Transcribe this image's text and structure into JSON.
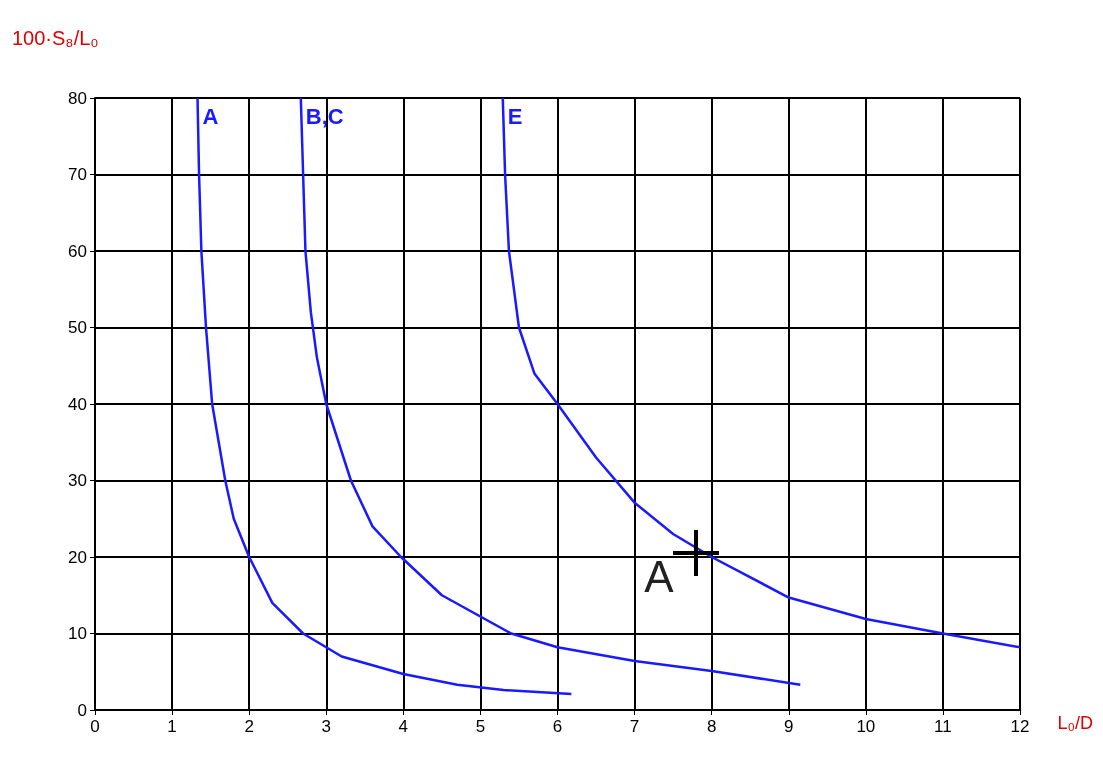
{
  "chart_data": {
    "type": "line",
    "xlabel": "L₀/D",
    "ylabel": "100·S₈/L₀",
    "xlim": [
      0,
      12
    ],
    "xticks": [
      0,
      1,
      2,
      3,
      4,
      5,
      6,
      7,
      8,
      9,
      10,
      11,
      12
    ],
    "ylim": [
      0,
      80
    ],
    "yticks": [
      0,
      10,
      20,
      30,
      40,
      50,
      60,
      70,
      80
    ],
    "grid": true,
    "marker": "none",
    "line_style": "solid",
    "series": [
      {
        "name": "A",
        "color": "#1a1aff",
        "x": [
          1.33,
          1.35,
          1.38,
          1.44,
          1.52,
          1.69,
          1.8,
          2.0,
          2.3,
          2.7,
          3.2,
          4.0,
          4.7,
          5.3,
          6.18
        ],
        "values": [
          80,
          70,
          60,
          50,
          40,
          30,
          25,
          20,
          14,
          10,
          7,
          4.7,
          3.3,
          2.6,
          2.1
        ]
      },
      {
        "name": "B,C",
        "color": "#1a1aff",
        "x": [
          2.67,
          2.7,
          2.73,
          2.8,
          2.88,
          3.0,
          3.32,
          3.6,
          3.97,
          4.5,
          5.4,
          6.0,
          7.0,
          8.0,
          9.15
        ],
        "values": [
          80,
          70,
          60,
          52,
          46,
          40,
          30,
          24,
          20,
          15,
          10,
          8.2,
          6.4,
          5.1,
          3.3
        ]
      },
      {
        "name": "E",
        "color": "#1a1aff",
        "x": [
          5.29,
          5.32,
          5.37,
          5.5,
          5.7,
          6.0,
          6.5,
          7.0,
          7.5,
          8.0,
          9.0,
          10.0,
          11.0,
          12.0
        ],
        "values": [
          80,
          70,
          60,
          50,
          44,
          40,
          33,
          27.1,
          23,
          20,
          14.7,
          11.9,
          10,
          8.2
        ]
      }
    ],
    "annotations": [
      {
        "text": "A",
        "x": 7.8,
        "y": 20.5
      }
    ]
  }
}
